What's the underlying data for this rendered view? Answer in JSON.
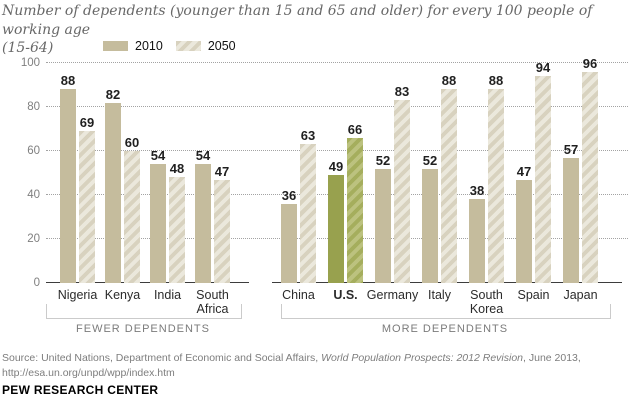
{
  "header": {
    "title_line1": "Number of dependents (younger than 15 and 65 and older) for every 100 people of working age",
    "title_line2": "(15-64)"
  },
  "legend": {
    "items": [
      {
        "label": "2010",
        "style": "solid"
      },
      {
        "label": "2050",
        "style": "striped"
      }
    ]
  },
  "chart_data": {
    "type": "bar",
    "title": "Number of dependents (younger than 15 and 65 and older) for every 100 people of working age (15-64)",
    "xlabel": "",
    "ylabel": "",
    "ylim": [
      0,
      100
    ],
    "yticks": [
      0,
      20,
      40,
      60,
      80,
      100
    ],
    "grid": "horizontal dotted",
    "legend_position": "top",
    "series_names": [
      "2010",
      "2050"
    ],
    "groups": [
      {
        "label": "FEWER DEPENDENTS",
        "countries": [
          {
            "name": "Nigeria",
            "2010": 88,
            "2050": 69
          },
          {
            "name": "Kenya",
            "2010": 82,
            "2050": 60
          },
          {
            "name": "India",
            "2010": 54,
            "2050": 48
          },
          {
            "name": "South Africa",
            "2010": 54,
            "2050": 47
          }
        ]
      },
      {
        "label": "MORE DEPENDENTS",
        "countries": [
          {
            "name": "China",
            "2010": 36,
            "2050": 63
          },
          {
            "name": "U.S.",
            "2010": 49,
            "2050": 66,
            "highlight": true
          },
          {
            "name": "Germany",
            "2010": 52,
            "2050": 83
          },
          {
            "name": "Italy",
            "2010": 52,
            "2050": 88
          },
          {
            "name": "South Korea",
            "2010": 38,
            "2050": 88
          },
          {
            "name": "Spain",
            "2010": 47,
            "2050": 94
          },
          {
            "name": "Japan",
            "2010": 57,
            "2050": 96
          }
        ]
      }
    ]
  },
  "colors": {
    "tan_solid": "#c5bc9d",
    "tan_stripe_dark": "#d8d2bf",
    "tan_stripe_light": "#ebe8dc",
    "green_solid": "#98a14e",
    "green_stripe_dark": "#a5ae5d",
    "green_stripe_light": "#bcc27f",
    "highlight_country": "U.S."
  },
  "footer": {
    "source_pre": "Source: United Nations, Department of Economic and Social Affairs, ",
    "source_italic": "World Population Prospects: 2012 Revision",
    "source_post": ", June 2013, http://esa.un.org/unpd/wpp/index.htm",
    "brand": "PEW RESEARCH CENTER"
  }
}
